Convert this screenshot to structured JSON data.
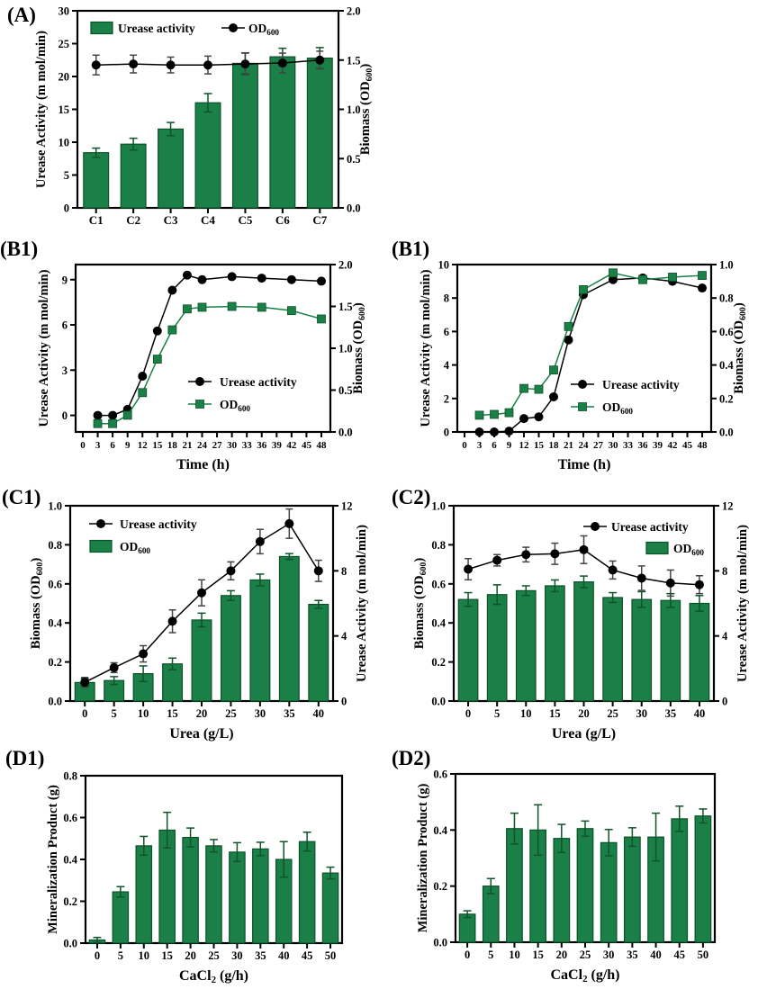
{
  "figure": {
    "background": "#FFFFFF"
  },
  "colors": {
    "bar_fill": "#1A8048",
    "bar_edge": "#0C5228",
    "green_err": "#11532A",
    "green_line": "#1A8048",
    "black": "#000000"
  },
  "chart_data": [
    {
      "id": "A",
      "label": "(A)",
      "type": "bar+line",
      "categories": [
        "C1",
        "C2",
        "C3",
        "C4",
        "C5",
        "C6",
        "C7"
      ],
      "x_axis": {
        "mode": "category",
        "tick_labels": [
          "C1",
          "C2",
          "C3",
          "C4",
          "C5",
          "C6",
          "C7"
        ],
        "label_parts": []
      },
      "left_axis": {
        "label_parts": [
          {
            "t": "Urease Activity (m mol/min)"
          }
        ],
        "range": [
          0,
          30
        ],
        "tick_labels": [
          "0",
          "5",
          "10",
          "15",
          "20",
          "25",
          "30"
        ]
      },
      "right_axis": {
        "label_parts": [
          {
            "t": "Biomass (OD"
          },
          {
            "t": "600",
            "sub": true
          },
          {
            "t": ")"
          }
        ],
        "range": [
          0,
          2
        ],
        "tick_labels": [
          "0.0",
          "0.5",
          "1.0",
          "1.5",
          "2.0"
        ]
      },
      "series": [
        {
          "name": "Urease activity",
          "kind": "bar",
          "axis": "left",
          "values": [
            8.4,
            9.7,
            12.0,
            16.0,
            22.0,
            23.0,
            22.8
          ],
          "errors": [
            0.7,
            0.9,
            1.0,
            1.4,
            1.6,
            1.3,
            1.6
          ]
        },
        {
          "name": "OD600",
          "kind": "circle",
          "axis": "right",
          "values": [
            1.45,
            1.46,
            1.45,
            1.45,
            1.46,
            1.47,
            1.5
          ],
          "errors": [
            0.1,
            0.09,
            0.08,
            0.09,
            0.11,
            0.1,
            0.09
          ]
        }
      ],
      "legend": {
        "items": [
          {
            "swatch": "bar",
            "parts": [
              {
                "t": "Urease activity"
              }
            ]
          },
          {
            "swatch": "circle",
            "parts": [
              {
                "t": "OD"
              },
              {
                "t": "600",
                "sub": true
              }
            ]
          }
        ]
      }
    },
    {
      "id": "B1",
      "label": "(B1)",
      "type": "line",
      "x_axis": {
        "mode": "numeric",
        "range": [
          0,
          48
        ],
        "tick_labels": [
          "0",
          "3",
          "6",
          "9",
          "12",
          "15",
          "18",
          "21",
          "24",
          "27",
          "30",
          "33",
          "36",
          "39",
          "42",
          "45",
          "48"
        ],
        "label_parts": [
          {
            "t": "Time (h)"
          }
        ]
      },
      "left_axis": {
        "label_parts": [
          {
            "t": "Urease Activity (m mol/min)"
          }
        ],
        "range": [
          -1.1,
          10
        ],
        "tick_labels": [
          "0",
          "3",
          "6",
          "9"
        ]
      },
      "right_axis": {
        "label_parts": [
          {
            "t": "Biomass (OD"
          },
          {
            "t": "600",
            "sub": true
          },
          {
            "t": ")"
          }
        ],
        "range": [
          0,
          2
        ],
        "tick_labels": [
          "0.0",
          "0.5",
          "1.0",
          "1.5",
          "2.0"
        ]
      },
      "x_values": [
        3,
        6,
        9,
        12,
        15,
        18,
        21,
        24,
        30,
        36,
        42,
        48
      ],
      "series": [
        {
          "name": "Urease activity",
          "kind": "circle",
          "axis": "left",
          "values": [
            0.0,
            0.0,
            0.4,
            2.6,
            5.6,
            8.3,
            9.3,
            9.0,
            9.2,
            9.1,
            9.0,
            8.9
          ],
          "errors": []
        },
        {
          "name": "OD600",
          "kind": "square",
          "axis": "right",
          "values": [
            0.1,
            0.1,
            0.2,
            0.47,
            0.87,
            1.22,
            1.47,
            1.49,
            1.5,
            1.49,
            1.45,
            1.35
          ],
          "errors": []
        }
      ],
      "legend": {
        "items": [
          {
            "swatch": "circle",
            "parts": [
              {
                "t": "Urease activity"
              }
            ]
          },
          {
            "swatch": "square",
            "parts": [
              {
                "t": "OD"
              },
              {
                "t": "600",
                "sub": true
              }
            ]
          }
        ]
      }
    },
    {
      "id": "B2",
      "label": "(B1)",
      "type": "line",
      "x_axis": {
        "mode": "numeric",
        "range": [
          0,
          48
        ],
        "tick_labels": [
          "0",
          "3",
          "6",
          "9",
          "12",
          "15",
          "18",
          "21",
          "24",
          "27",
          "30",
          "33",
          "36",
          "39",
          "42",
          "45",
          "48"
        ],
        "label_parts": [
          {
            "t": "Time (h)"
          }
        ]
      },
      "left_axis": {
        "label_parts": [
          {
            "t": "Urease Activity (m mol/min)"
          }
        ],
        "range": [
          0,
          10
        ],
        "tick_labels": [
          "0",
          "2",
          "4",
          "6",
          "8",
          "10"
        ]
      },
      "right_axis": {
        "label_parts": [
          {
            "t": "Biomass (OD"
          },
          {
            "t": "600",
            "sub": true
          },
          {
            "t": ")"
          }
        ],
        "range": [
          0,
          1
        ],
        "tick_labels": [
          "0.0",
          "0.2",
          "0.4",
          "0.6",
          "0.8",
          "1.0"
        ]
      },
      "x_values": [
        3,
        6,
        9,
        12,
        15,
        18,
        21,
        24,
        30,
        36,
        42,
        48
      ],
      "series": [
        {
          "name": "Urease activity",
          "kind": "circle",
          "axis": "left",
          "values": [
            0.0,
            0.0,
            0.05,
            0.8,
            0.9,
            2.1,
            5.5,
            8.2,
            9.1,
            9.2,
            9.0,
            8.6
          ],
          "errors": []
        },
        {
          "name": "OD600",
          "kind": "square",
          "axis": "right",
          "values": [
            0.1,
            0.105,
            0.115,
            0.26,
            0.255,
            0.37,
            0.63,
            0.85,
            0.95,
            0.91,
            0.925,
            0.935
          ],
          "errors": []
        }
      ],
      "legend": {
        "items": [
          {
            "swatch": "circle",
            "parts": [
              {
                "t": "Urease activity"
              }
            ]
          },
          {
            "swatch": "square",
            "parts": [
              {
                "t": "OD"
              },
              {
                "t": "600",
                "sub": true
              }
            ]
          }
        ]
      }
    },
    {
      "id": "C1",
      "label": "(C1)",
      "type": "bar+line",
      "categories": [
        "0",
        "5",
        "10",
        "15",
        "20",
        "25",
        "30",
        "35",
        "40"
      ],
      "x_axis": {
        "mode": "category",
        "tick_labels": [
          "0",
          "5",
          "10",
          "15",
          "20",
          "25",
          "30",
          "35",
          "40"
        ],
        "label_parts": [
          {
            "t": "Urea (g/L)"
          }
        ]
      },
      "left_axis": {
        "label_parts": [
          {
            "t": "Biomass (OD"
          },
          {
            "t": "600",
            "sub": true
          },
          {
            "t": ")"
          }
        ],
        "range": [
          0,
          1
        ],
        "tick_labels": [
          "0.0",
          "0.2",
          "0.4",
          "0.6",
          "0.8",
          "1.0"
        ]
      },
      "right_axis": {
        "label_parts": [
          {
            "t": "Urease Activity (m mol/min)"
          }
        ],
        "range": [
          0,
          12
        ],
        "tick_labels": [
          "0",
          "4",
          "8",
          "12"
        ]
      },
      "series": [
        {
          "name": "OD600",
          "kind": "bar",
          "axis": "left",
          "values": [
            0.095,
            0.105,
            0.14,
            0.19,
            0.415,
            0.54,
            0.62,
            0.74,
            0.495
          ],
          "errors": [
            0.02,
            0.02,
            0.04,
            0.03,
            0.035,
            0.025,
            0.03,
            0.015,
            0.02
          ]
        },
        {
          "name": "Urease activity",
          "kind": "circle",
          "axis": "right",
          "values": [
            1.15,
            2.05,
            2.9,
            4.9,
            6.65,
            8.0,
            9.8,
            10.9,
            8.0
          ],
          "errors": [
            0.3,
            0.3,
            0.5,
            0.7,
            0.8,
            0.55,
            0.75,
            0.9,
            0.65
          ]
        }
      ],
      "legend": {
        "items": [
          {
            "swatch": "circle",
            "parts": [
              {
                "t": "Urease activity"
              }
            ]
          },
          {
            "swatch": "bar",
            "parts": [
              {
                "t": "OD"
              },
              {
                "t": "600",
                "sub": true
              }
            ]
          }
        ]
      }
    },
    {
      "id": "C2",
      "label": "(C2)",
      "type": "bar+line",
      "categories": [
        "0",
        "5",
        "10",
        "15",
        "20",
        "25",
        "30",
        "35",
        "40"
      ],
      "x_axis": {
        "mode": "category",
        "tick_labels": [
          "0",
          "5",
          "10",
          "15",
          "20",
          "25",
          "30",
          "35",
          "40"
        ],
        "label_parts": [
          {
            "t": "Urea (g/L)"
          }
        ]
      },
      "left_axis": {
        "label_parts": [
          {
            "t": "Biomass (OD"
          },
          {
            "t": "600",
            "sub": true
          },
          {
            "t": ")"
          }
        ],
        "range": [
          0,
          1
        ],
        "tick_labels": [
          "0.0",
          "0.2",
          "0.4",
          "0.6",
          "0.8",
          "1.0"
        ]
      },
      "right_axis": {
        "label_parts": [
          {
            "t": "Urease Activity (m mol/min)"
          }
        ],
        "range": [
          0,
          12
        ],
        "tick_labels": [
          "0",
          "4",
          "8",
          "12"
        ]
      },
      "series": [
        {
          "name": "OD600",
          "kind": "bar",
          "axis": "left",
          "values": [
            0.52,
            0.545,
            0.565,
            0.59,
            0.61,
            0.53,
            0.52,
            0.515,
            0.5
          ],
          "errors": [
            0.035,
            0.05,
            0.025,
            0.03,
            0.03,
            0.025,
            0.04,
            0.035,
            0.04
          ]
        },
        {
          "name": "Urease activity",
          "kind": "circle",
          "axis": "right",
          "values": [
            8.1,
            8.65,
            9.0,
            9.05,
            9.3,
            8.05,
            7.55,
            7.25,
            7.15
          ],
          "errors": [
            0.65,
            0.35,
            0.45,
            0.65,
            0.85,
            0.55,
            0.75,
            0.8,
            0.55
          ]
        }
      ],
      "legend": {
        "items": [
          {
            "swatch": "circle",
            "parts": [
              {
                "t": "Urease activity"
              }
            ]
          },
          {
            "swatch": "bar",
            "parts": [
              {
                "t": "OD"
              },
              {
                "t": "600",
                "sub": true
              }
            ]
          }
        ]
      }
    },
    {
      "id": "D1",
      "label": "(D1)",
      "type": "bar",
      "categories": [
        "0",
        "5",
        "10",
        "15",
        "20",
        "25",
        "30",
        "35",
        "40",
        "45",
        "50"
      ],
      "x_axis": {
        "mode": "category",
        "tick_labels": [
          "0",
          "5",
          "10",
          "15",
          "20",
          "25",
          "30",
          "35",
          "40",
          "45",
          "50"
        ],
        "label_parts": [
          {
            "t": "CaCl"
          },
          {
            "t": "2",
            "sub": true
          },
          {
            "t": " (g/h)"
          }
        ]
      },
      "left_axis": {
        "label_parts": [
          {
            "t": "Mineralization Product (g)"
          }
        ],
        "range": [
          0,
          0.8
        ],
        "tick_labels": [
          "0.0",
          "0.2",
          "0.4",
          "0.6",
          "0.8"
        ]
      },
      "series": [
        {
          "name": "Mineralization product",
          "kind": "bar",
          "axis": "left",
          "values": [
            0.015,
            0.245,
            0.465,
            0.54,
            0.505,
            0.465,
            0.435,
            0.45,
            0.4,
            0.485,
            0.335
          ],
          "errors": [
            0.012,
            0.025,
            0.045,
            0.085,
            0.045,
            0.03,
            0.045,
            0.032,
            0.085,
            0.045,
            0.028
          ]
        }
      ]
    },
    {
      "id": "D2",
      "label": "(D2)",
      "type": "bar",
      "categories": [
        "0",
        "5",
        "10",
        "15",
        "20",
        "25",
        "30",
        "35",
        "40",
        "45",
        "50"
      ],
      "x_axis": {
        "mode": "category",
        "tick_labels": [
          "0",
          "5",
          "10",
          "15",
          "20",
          "25",
          "30",
          "35",
          "40",
          "45",
          "50"
        ],
        "label_parts": [
          {
            "t": "CaCl"
          },
          {
            "t": "2",
            "sub": true
          },
          {
            "t": " (g/h)"
          }
        ]
      },
      "left_axis": {
        "label_parts": [
          {
            "t": "Mineralization Product (g)"
          }
        ],
        "range": [
          0,
          0.6
        ],
        "tick_labels": [
          "0.0",
          "0.2",
          "0.4",
          "0.6"
        ]
      },
      "series": [
        {
          "name": "Mineralization product",
          "kind": "bar",
          "axis": "left",
          "values": [
            0.1,
            0.2,
            0.405,
            0.4,
            0.37,
            0.405,
            0.355,
            0.375,
            0.375,
            0.44,
            0.45
          ],
          "errors": [
            0.012,
            0.027,
            0.055,
            0.09,
            0.05,
            0.027,
            0.047,
            0.033,
            0.085,
            0.045,
            0.025
          ]
        }
      ]
    }
  ]
}
